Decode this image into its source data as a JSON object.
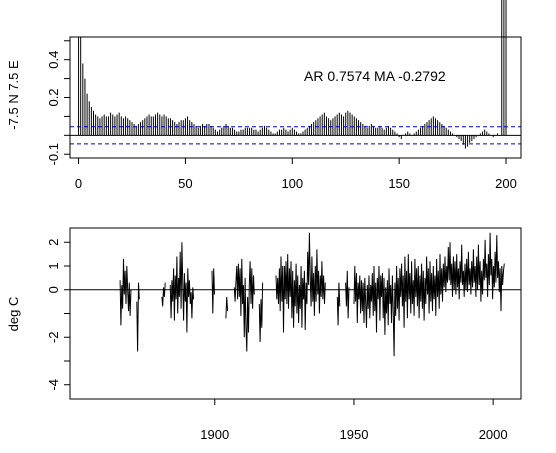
{
  "chart_data": [
    {
      "type": "bar",
      "ylabel": "-7.5 N 7.5 E",
      "annotation": "AR 0.7574  MA -0.2792",
      "xlim": [
        -4,
        207
      ],
      "ylim": [
        -0.12,
        0.52
      ],
      "xticks": [
        0,
        50,
        100,
        150,
        200
      ],
      "xtick_labels": [
        "0",
        "50",
        "100",
        "150",
        "200"
      ],
      "yticks": [
        -0.1,
        0.2,
        0.4
      ],
      "ytick_labels": [
        "-0.1",
        "0.2",
        "0.4"
      ],
      "ci_lines": [
        0.045,
        -0.045
      ],
      "ci_color": "#0000cc",
      "lags_x": [
        0,
        1,
        2,
        3,
        4,
        5,
        6,
        7,
        8,
        9,
        10,
        11,
        12,
        13,
        14,
        15,
        16,
        17,
        18,
        19,
        20,
        21,
        22,
        23,
        24,
        25,
        26,
        27,
        28,
        29,
        30,
        31,
        32,
        33,
        34,
        35,
        36,
        37,
        38,
        39,
        40,
        41,
        42,
        43,
        44,
        45,
        46,
        47,
        48,
        49,
        50,
        51,
        52,
        53,
        54,
        55,
        56,
        57,
        58,
        59,
        60,
        61,
        62,
        63,
        64,
        65,
        66,
        67,
        68,
        69,
        70,
        71,
        72,
        73,
        74,
        75,
        76,
        77,
        78,
        79,
        80,
        81,
        82,
        83,
        84,
        85,
        86,
        87,
        88,
        89,
        90,
        91,
        92,
        93,
        94,
        95,
        96,
        97,
        98,
        99,
        100,
        101,
        102,
        103,
        104,
        105,
        106,
        107,
        108,
        109,
        110,
        111,
        112,
        113,
        114,
        115,
        116,
        117,
        118,
        119,
        120,
        121,
        122,
        123,
        124,
        125,
        126,
        127,
        128,
        129,
        130,
        131,
        132,
        133,
        134,
        135,
        136,
        137,
        138,
        139,
        140,
        141,
        142,
        143,
        144,
        145,
        146,
        147,
        148,
        149,
        150,
        151,
        152,
        153,
        154,
        155,
        156,
        157,
        158,
        159,
        160,
        161,
        162,
        163,
        164,
        165,
        166,
        167,
        168,
        169,
        170,
        171,
        172,
        173,
        174,
        175,
        176,
        177,
        178,
        179,
        180,
        181,
        182,
        183,
        184,
        185,
        186,
        187,
        188,
        189,
        190,
        191,
        192,
        193,
        194,
        195,
        196,
        197,
        198,
        199,
        200
      ],
      "acf": [
        1.0,
        0.52,
        0.38,
        0.3,
        0.22,
        0.18,
        0.15,
        0.13,
        0.11,
        0.1,
        0.09,
        0.1,
        0.11,
        0.1,
        0.1,
        0.12,
        0.11,
        0.1,
        0.11,
        0.12,
        0.1,
        0.09,
        0.1,
        0.09,
        0.08,
        0.07,
        0.06,
        0.05,
        0.06,
        0.07,
        0.08,
        0.09,
        0.1,
        0.11,
        0.1,
        0.1,
        0.11,
        0.12,
        0.11,
        0.1,
        0.11,
        0.1,
        0.09,
        0.09,
        0.08,
        0.07,
        0.06,
        0.07,
        0.08,
        0.08,
        0.09,
        0.1,
        0.08,
        0.07,
        0.06,
        0.05,
        0.04,
        0.05,
        0.06,
        0.05,
        0.06,
        0.06,
        0.05,
        0.04,
        0.03,
        0.02,
        0.03,
        0.04,
        0.05,
        0.06,
        0.05,
        0.04,
        0.04,
        0.03,
        0.02,
        0.02,
        0.03,
        0.03,
        0.04,
        0.04,
        0.04,
        0.04,
        0.03,
        0.03,
        0.02,
        0.03,
        0.04,
        0.05,
        0.04,
        0.03,
        0.02,
        0.01,
        0.01,
        0.02,
        0.03,
        0.03,
        0.04,
        0.03,
        0.02,
        0.03,
        0.04,
        0.03,
        0.02,
        0.01,
        0.01,
        0.02,
        0.03,
        0.04,
        0.05,
        0.06,
        0.07,
        0.08,
        0.09,
        0.1,
        0.11,
        0.12,
        0.1,
        0.09,
        0.08,
        0.09,
        0.1,
        0.11,
        0.12,
        0.11,
        0.1,
        0.12,
        0.13,
        0.12,
        0.11,
        0.1,
        0.09,
        0.08,
        0.07,
        0.06,
        0.05,
        0.04,
        0.05,
        0.06,
        0.05,
        0.04,
        0.04,
        0.05,
        0.04,
        0.03,
        0.04,
        0.05,
        0.04,
        0.03,
        0.02,
        0.01,
        -0.01,
        -0.02,
        0.0,
        0.01,
        0.02,
        0.01,
        0.0,
        0.01,
        0.02,
        0.03,
        0.04,
        0.05,
        0.06,
        0.07,
        0.08,
        0.09,
        0.1,
        0.09,
        0.08,
        0.07,
        0.06,
        0.05,
        0.04,
        0.03,
        0.02,
        0.01,
        0.0,
        -0.01,
        -0.02,
        -0.03,
        -0.05,
        -0.07,
        -0.06,
        -0.04,
        -0.03,
        -0.02,
        -0.01,
        0.0,
        0.01,
        0.02,
        0.03,
        0.02,
        0.01,
        0.0,
        -0.01,
        0.0,
        0.01,
        0.0
      ]
    },
    {
      "type": "line",
      "ylabel": "deg C",
      "xlim": [
        1848,
        2010
      ],
      "ylim": [
        -4.6,
        2.6
      ],
      "xticks": [
        1900,
        1950,
        2000
      ],
      "xtick_labels": [
        "1900",
        "1950",
        "2000"
      ],
      "yticks": [
        -4,
        -2,
        0,
        1,
        2
      ],
      "ytick_labels": [
        "-4",
        "-2",
        "0",
        "1",
        "2"
      ],
      "segments": [
        [
          1866.0,
          0.4,
          1866.3,
          -1.5,
          1866.6,
          0.2,
          1866.9,
          -0.8,
          1867.2,
          1.3,
          1867.5,
          -0.2,
          1867.8,
          0.8,
          1868.1,
          -0.6,
          1868.4,
          1.0,
          1868.7,
          0.1,
          1869.0,
          -0.9,
          1869.3,
          0.3,
          1869.6,
          -1.1,
          1869.9,
          0.0
        ],
        [
          1872.0,
          -0.5,
          1872.3,
          -2.6,
          1872.6,
          0.3,
          1872.9,
          -0.4
        ],
        [
          1881.0,
          -0.3,
          1881.3,
          -0.7,
          1881.6,
          0.1,
          1881.9,
          -0.3,
          1882.2,
          0.3
        ],
        [
          1884.0,
          0.2,
          1884.3,
          -1.2,
          1884.6,
          0.4,
          1884.9,
          -0.5,
          1885.2,
          0.9,
          1885.5,
          -1.3,
          1885.8,
          0.6,
          1886.1,
          -0.4,
          1886.4,
          1.4,
          1886.7,
          -1.0,
          1887.0,
          0.5,
          1887.3,
          -0.3,
          1887.6,
          1.6,
          1887.9,
          -0.8,
          1888.2,
          2.0,
          1888.5,
          0.2,
          1888.8,
          -1.3,
          1889.1,
          0.7,
          1889.4,
          -0.5,
          1889.7,
          0.3,
          1890.0,
          -1.8,
          1890.3,
          0.9,
          1890.6,
          -0.3,
          1890.9,
          0.4,
          1891.2,
          -0.6,
          1891.5,
          -0.1,
          1891.8,
          -1.2,
          1892.1,
          0.1,
          1892.4,
          -0.4
        ],
        [
          1899.0,
          0.8,
          1899.3,
          -1.0,
          1899.6,
          0.9,
          1899.9,
          -0.2
        ],
        [
          1904.0,
          -1.2,
          1904.3,
          -0.3,
          1904.6,
          -0.9
        ],
        [
          1907.0,
          0.1,
          1907.3,
          -0.5,
          1907.6,
          0.3,
          1907.9,
          1.0,
          1908.2,
          -0.4,
          1908.5,
          1.1,
          1908.8,
          -0.3,
          1909.1,
          0.9,
          1909.4,
          -1.1,
          1909.7,
          1.3,
          1910.0,
          -0.6,
          1910.3,
          0.2,
          1910.6,
          -2.0,
          1910.9,
          0.5,
          1911.2,
          -1.5,
          1911.5,
          -2.6,
          1911.8,
          -0.3,
          1912.1,
          -1.8,
          1912.4,
          0.2,
          1912.7,
          1.2,
          1913.0,
          -0.6,
          1913.3,
          0.9,
          1913.6,
          -0.8,
          1913.9,
          0.6,
          1914.2,
          -0.2
        ],
        [
          1916.0,
          -0.6,
          1916.3,
          -2.2,
          1916.6,
          -0.4,
          1916.9,
          -1.6,
          1917.2,
          0.3
        ],
        [
          1922.0,
          0.6,
          1922.3,
          -0.4,
          1922.6,
          0.5,
          1922.9,
          -0.6,
          1923.2,
          0.9,
          1923.5,
          -0.9,
          1923.8,
          1.4,
          1924.1,
          -0.5,
          1924.4,
          1.0,
          1924.7,
          -1.8,
          1925.0,
          1.0,
          1925.3,
          -0.4,
          1925.6,
          1.2,
          1925.9,
          -0.6,
          1926.2,
          1.5,
          1926.5,
          -0.8,
          1926.8,
          0.9,
          1927.1,
          -0.3,
          1927.4,
          1.2,
          1927.7,
          -1.2,
          1928.0,
          0.8,
          1928.3,
          -1.6,
          1928.6,
          0.4,
          1928.9,
          -0.7,
          1929.2,
          1.1,
          1929.5,
          -1.0,
          1929.8,
          0.6,
          1930.1,
          -1.4,
          1930.4,
          0.2,
          1930.7,
          -0.8,
          1931.0,
          1.0,
          1931.3,
          -1.6,
          1931.6,
          0.5,
          1931.9,
          -0.4,
          1932.2,
          0.8,
          1932.5,
          -1.7,
          1932.8,
          0.3,
          1933.1,
          -0.6,
          1933.4,
          1.6,
          1933.7,
          0.2,
          1934.0,
          2.4,
          1934.3,
          0.4,
          1934.6,
          -0.7,
          1934.9,
          1.4,
          1935.2,
          -0.5,
          1935.5,
          0.7,
          1935.8,
          -1.1,
          1936.1,
          1.0,
          1936.4,
          -0.5,
          1936.7,
          1.7,
          1937.0,
          -0.2,
          1937.3,
          0.8,
          1937.6,
          -1.0,
          1937.9,
          0.6,
          1938.2,
          -0.3,
          1938.5,
          1.2,
          1938.8,
          -0.4,
          1939.1,
          0.6,
          1939.4,
          -0.6,
          1939.7,
          0.3
        ],
        [
          1944.0,
          -0.3,
          1944.3,
          -1.5,
          1944.6,
          0.3,
          1944.9,
          -0.7
        ],
        [
          1947.0,
          0.3,
          1947.3,
          -0.7,
          1947.6,
          0.8,
          1947.9,
          -1.2,
          1948.2,
          0.1
        ],
        [
          1950.0,
          -0.6,
          1950.3,
          1.0,
          1950.6,
          -0.5,
          1950.9,
          0.7,
          1951.2,
          -1.4,
          1951.5,
          0.3,
          1951.8,
          -0.4,
          1952.1,
          0.6,
          1952.4,
          -1.0,
          1952.7,
          0.4,
          1953.0,
          -0.9,
          1953.3,
          0.3,
          1953.6,
          -1.4,
          1953.9,
          0.5,
          1954.2,
          -0.6,
          1954.5,
          -1.6,
          1954.8,
          0.2,
          1955.1,
          -0.8,
          1955.4,
          0.6,
          1955.7,
          -1.2,
          1956.0,
          0.2,
          1956.3,
          -0.5,
          1956.6,
          0.7,
          1956.9,
          -1.1,
          1957.2,
          1.0,
          1957.5,
          -0.9,
          1957.8,
          0.3,
          1958.1,
          -1.8,
          1958.4,
          0.5,
          1958.7,
          -0.4,
          1959.0,
          1.0,
          1959.3,
          -1.3,
          1959.6,
          0.6,
          1959.9,
          -0.3,
          1960.2,
          0.7,
          1960.5,
          -1.2,
          1960.8,
          0.5,
          1961.1,
          -1.9,
          1961.4,
          0.1,
          1961.7,
          -1.0,
          1962.0,
          0.4,
          1962.3,
          -1.5,
          1962.6,
          0.9,
          1962.9,
          -0.6,
          1963.2,
          0.2,
          1963.5,
          -1.4,
          1963.8,
          0.6,
          1964.1,
          -0.9,
          1964.4,
          -2.8,
          1964.7,
          0.3,
          1965.0,
          -1.1,
          1965.3,
          1.0,
          1965.6,
          -0.8,
          1965.9,
          0.5,
          1966.2,
          -1.3,
          1966.5,
          0.9,
          1966.8,
          -0.3,
          1967.1,
          1.1,
          1967.4,
          -0.7,
          1967.7,
          0.6,
          1968.0,
          -1.6,
          1968.3,
          1.4,
          1968.6,
          -0.5,
          1968.9,
          0.8,
          1969.2,
          -1.2,
          1969.5,
          1.5,
          1969.8,
          -0.4,
          1970.1,
          0.7,
          1970.4,
          -1.0,
          1970.7,
          1.2,
          1971.0,
          -0.6,
          1971.3,
          0.4,
          1971.6,
          -1.1,
          1971.9,
          1.3,
          1972.2,
          -0.3,
          1972.5,
          0.9,
          1972.8,
          -0.7,
          1973.1,
          1.0,
          1973.4,
          -1.2,
          1973.7,
          0.6,
          1974.0,
          -0.5,
          1974.3,
          1.1,
          1974.6,
          -0.8,
          1974.9,
          0.8,
          1975.2,
          -1.3,
          1975.5,
          0.5,
          1975.8,
          -0.6,
          1976.1,
          1.4,
          1976.4,
          -0.2,
          1976.7,
          0.9,
          1977.0,
          -1.0,
          1977.3,
          1.2,
          1977.6,
          -0.5,
          1977.9,
          0.7,
          1978.2,
          -0.9,
          1978.5,
          1.0,
          1978.8,
          -0.4,
          1979.1,
          0.6,
          1979.4,
          -1.1,
          1979.7,
          1.3,
          1980.0,
          -0.3,
          1980.3,
          0.8,
          1980.6,
          -0.8,
          1980.9,
          1.5,
          1981.2,
          -0.2,
          1981.5,
          0.9,
          1981.8,
          -0.5,
          1982.1,
          1.1,
          1982.4,
          0.1,
          1982.7,
          1.4,
          1983.0,
          -0.1,
          1983.3,
          1.0,
          1983.6,
          0.3,
          1983.9,
          1.8,
          1984.2,
          0.4,
          1984.5,
          2.0,
          1984.8,
          0.2,
          1985.1,
          1.1,
          1985.4,
          -0.3,
          1985.7,
          1.4,
          1986.0,
          0.0,
          1986.3,
          1.2,
          1986.6,
          -0.2,
          1986.9,
          1.5,
          1987.2,
          0.1,
          1987.5,
          0.9,
          1987.8,
          -0.4,
          1988.1,
          1.2,
          1988.4,
          0.3,
          1988.7,
          1.9,
          1989.0,
          0.2,
          1989.3,
          0.8,
          1989.6,
          -0.3,
          1989.9,
          1.1,
          1990.2,
          0.0,
          1990.5,
          1.3,
          1990.8,
          -0.1,
          1991.1,
          1.6,
          1991.4,
          0.2,
          1991.7,
          0.9,
          1992.0,
          -0.2,
          1992.3,
          1.2,
          1992.6,
          0.1,
          1992.9,
          1.7,
          1993.2,
          0.3,
          1993.5,
          1.0,
          1993.8,
          -0.3,
          1994.1,
          1.4,
          1994.4,
          0.0,
          1994.7,
          1.9,
          1995.0,
          0.2,
          1995.3,
          1.2,
          1995.6,
          -0.5,
          1995.9,
          0.8,
          1996.2,
          -0.2,
          1996.5,
          1.3,
          1996.8,
          0.4,
          1997.1,
          2.1,
          1997.4,
          0.5,
          1997.7,
          1.1,
          1998.0,
          -0.3,
          1998.3,
          1.5,
          1998.6,
          0.2,
          1998.9,
          2.4,
          1999.2,
          0.6,
          1999.5,
          1.3,
          1999.8,
          -0.4,
          2000.1,
          1.0,
          2000.4,
          0.1,
          2000.7,
          1.6,
          2001.0,
          0.3,
          2001.3,
          2.3,
          2001.6,
          0.5,
          2001.9,
          1.2,
          2002.2,
          -0.1,
          2002.5,
          0.9,
          2002.8,
          -0.9,
          2003.1,
          1.0,
          2003.4,
          0.2,
          2003.7,
          0.8,
          2004.0,
          1.1
        ]
      ]
    }
  ]
}
